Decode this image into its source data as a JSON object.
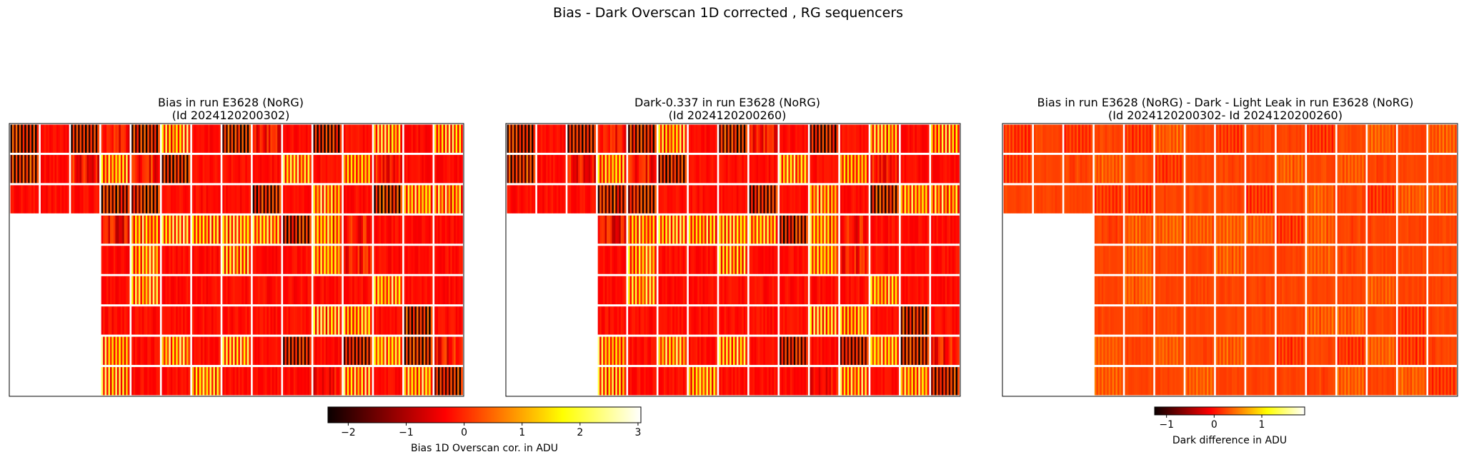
{
  "suptitle": "Bias - Dark Overscan 1D corrected , RG  sequencers",
  "panels": [
    {
      "id": "bias",
      "title_line1": "Bias in run E3628 (NoRG)",
      "title_line2": "(Id 2024120200302)",
      "scale": 1.0,
      "bias_offset": 0.0
    },
    {
      "id": "dark",
      "title_line1": "Dark-0.337 in run E3628 (NoRG)",
      "title_line2": "(Id 2024120200260)",
      "scale": 0.95,
      "bias_offset": 0.0
    },
    {
      "id": "diff",
      "title_line1": "Bias in run E3628 (NoRG) - Dark - Light Leak in run E3628 (NoRG)",
      "title_line2": "(Id 2024120200302- Id 2024120200260)",
      "scale": 0.18,
      "bias_offset": 0.25
    }
  ],
  "colorbars": [
    {
      "id": "cbar1",
      "label": "Bias 1D Overscan cor. in ADU",
      "vmin": -2.35,
      "vmax": 3.05,
      "ticks": [
        -2,
        -1,
        0,
        1,
        2,
        3
      ],
      "tick_labels": [
        "−2",
        "−1",
        "0",
        "1",
        "2",
        "3"
      ]
    },
    {
      "id": "cbar2",
      "label": "Dark difference in ADU",
      "vmin": -1.25,
      "vmax": 1.9,
      "ticks": [
        -1,
        0,
        1
      ],
      "tick_labels": [
        "−1",
        "0",
        "1"
      ]
    }
  ],
  "chart_data": [
    {
      "type": "heatmap",
      "title": "Bias in run E3628 (NoRG) (Id 2024120200302)",
      "colormap": "hot",
      "grid": {
        "rows": 9,
        "cols": 15,
        "empty_block": {
          "rows": [
            4,
            9
          ],
          "cols": [
            1,
            3
          ]
        }
      },
      "colorbar": {
        "label": "Bias 1D Overscan cor. in ADU",
        "range": [
          -2.35,
          3.05
        ]
      }
    },
    {
      "type": "heatmap",
      "title": "Dark-0.337 in run E3628 (NoRG) (Id 2024120200260)",
      "colormap": "hot",
      "grid": {
        "rows": 9,
        "cols": 15,
        "empty_block": {
          "rows": [
            4,
            9
          ],
          "cols": [
            1,
            3
          ]
        }
      },
      "colorbar": {
        "label": "Bias 1D Overscan cor. in ADU",
        "range": [
          -2.35,
          3.05
        ]
      }
    },
    {
      "type": "heatmap",
      "title": "Bias in run E3628 (NoRG) - Dark - Light Leak in run E3628 (NoRG) (Id 2024120200302- Id 2024120200260)",
      "colormap": "hot",
      "grid": {
        "rows": 9,
        "cols": 15,
        "empty_block": {
          "rows": [
            4,
            9
          ],
          "cols": [
            1,
            3
          ]
        }
      },
      "colorbar": {
        "label": "Dark difference in ADU",
        "range": [
          -1.25,
          1.9
        ]
      }
    }
  ]
}
